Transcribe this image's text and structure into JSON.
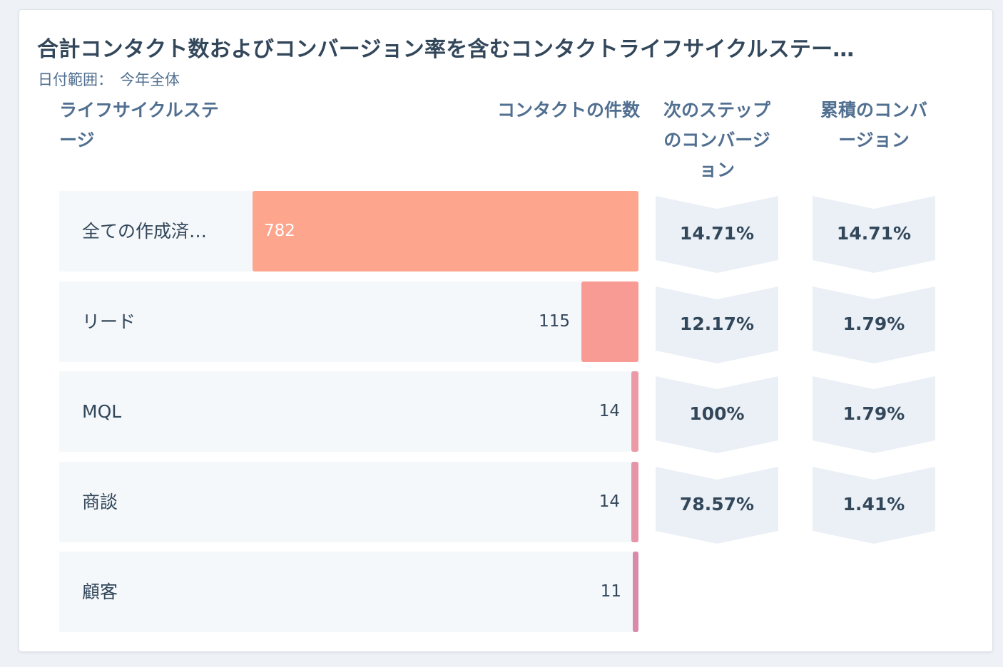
{
  "card": {
    "title": "合計コンタクト数およびコンバージョン率を含むコンタクトライフサイクルステー…",
    "date_range_label": "日付範囲：",
    "date_range_value": "今年全体"
  },
  "headers": {
    "stage": "ライフサイクルステージ",
    "count": "コンタクトの件数",
    "next_conversion": "次のステップのコンバージョン",
    "cumulative_conversion": "累積のコンバージョン"
  },
  "colors": {
    "bar_0": "#fea58e",
    "bar_1": "#f99b95",
    "bar_2": "#ec9aa6",
    "bar_3": "#e694a8",
    "bar_4": "#d98aa8",
    "chevron": "#eaf0f6",
    "row_bg": "#f5f8fa"
  },
  "chart_data": {
    "type": "bar",
    "orientation": "horizontal-funnel",
    "categories": [
      "全ての作成済…",
      "リード",
      "MQL",
      "商談",
      "顧客"
    ],
    "values": [
      782,
      115,
      14,
      14,
      11
    ],
    "value_labels": [
      "782",
      "115",
      "14",
      "14",
      "11"
    ],
    "next_step_conversion": [
      "14.71%",
      "12.17%",
      "100%",
      "78.57%"
    ],
    "cumulative_conversion": [
      "14.71%",
      "1.79%",
      "1.79%",
      "1.41%"
    ]
  }
}
